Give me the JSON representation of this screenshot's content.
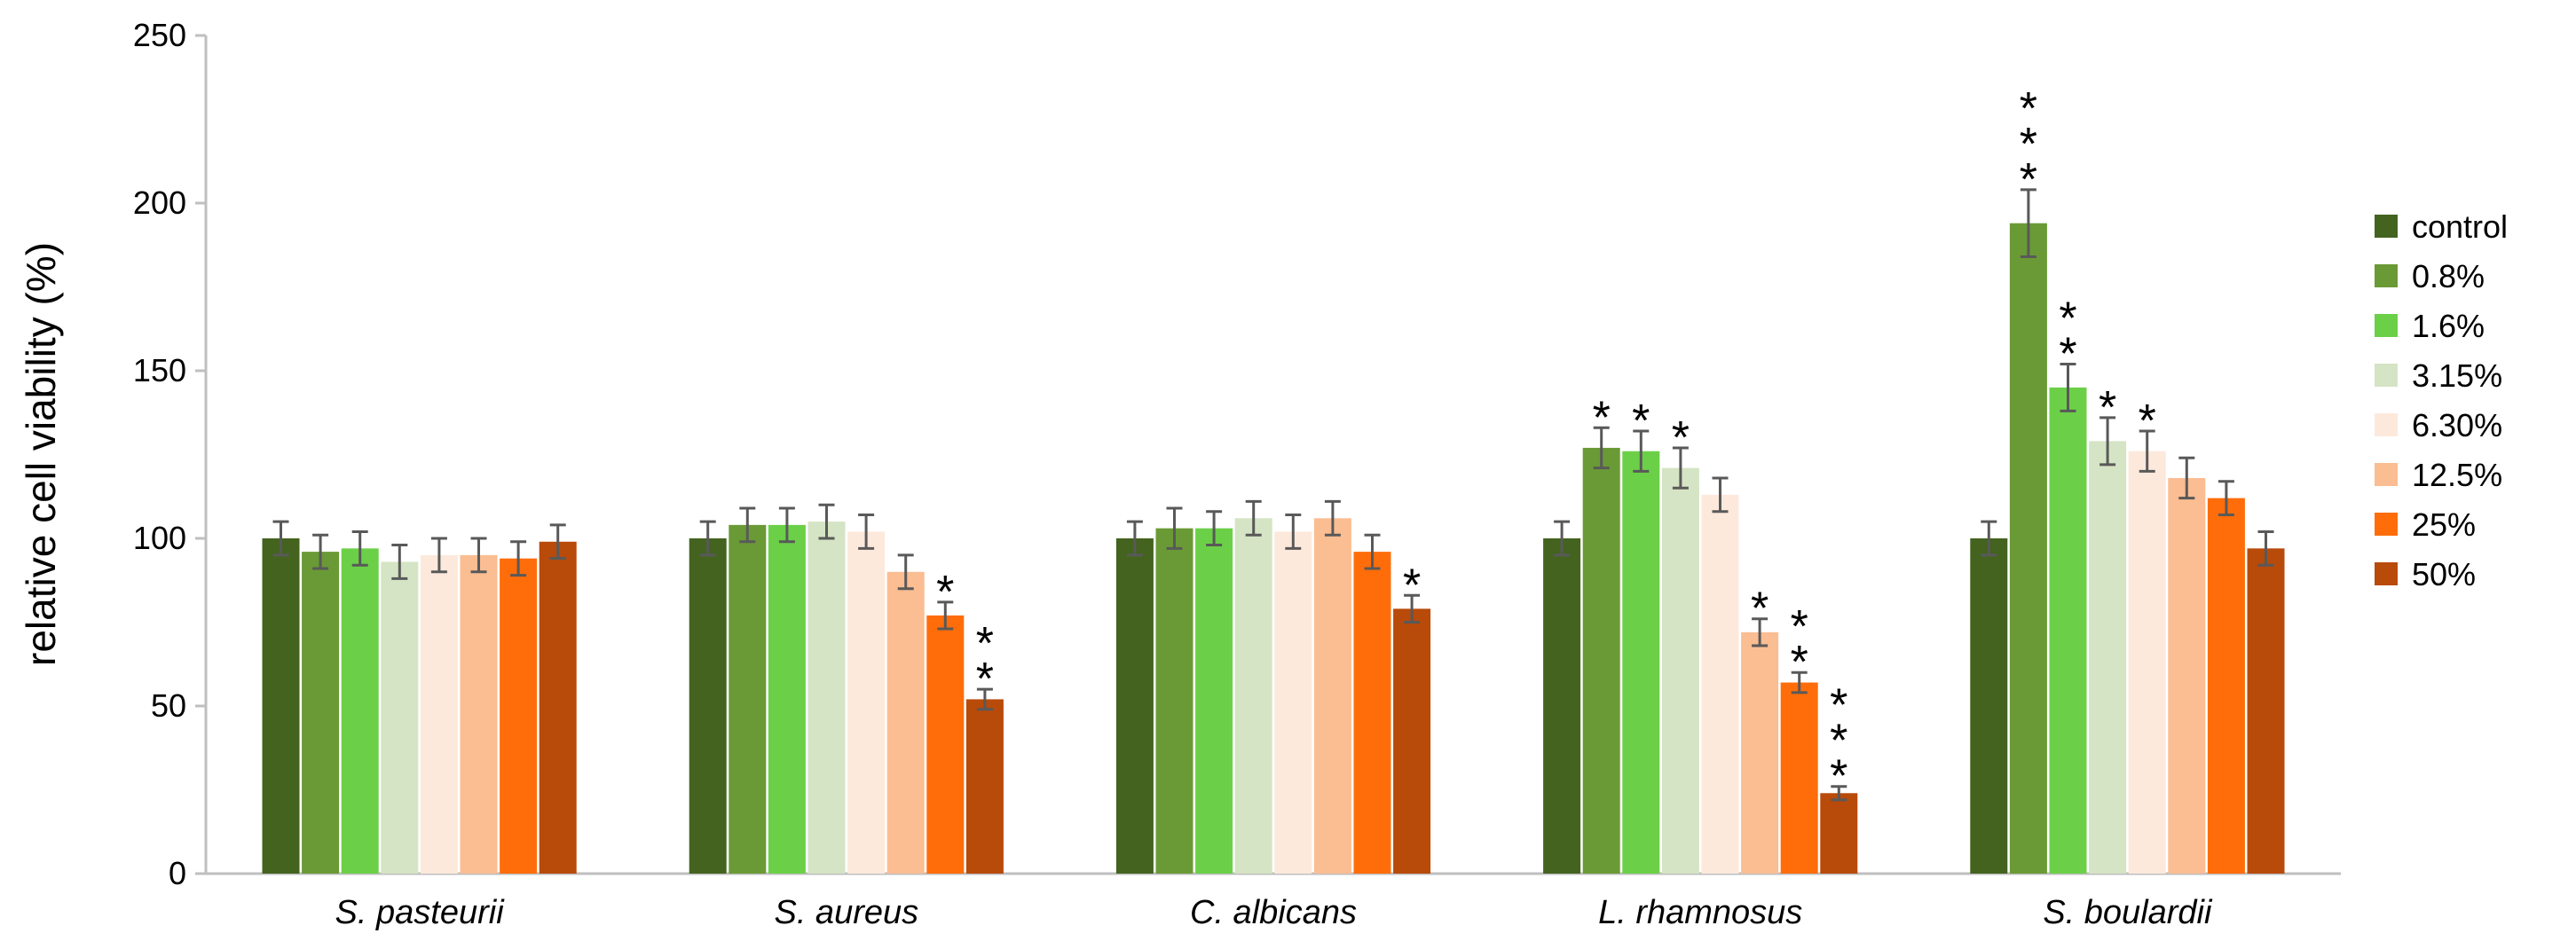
{
  "chart_data": {
    "type": "bar",
    "title": "",
    "xlabel": "",
    "ylabel": "relative cell viability (%)",
    "ylim": [
      0,
      250
    ],
    "yticks": [
      0,
      50,
      100,
      150,
      200,
      250
    ],
    "grid": false,
    "legend_position": "right",
    "categories": [
      "S. pasteurii",
      "S. aureus",
      "C. albicans",
      "L. rhamnosus",
      "S. boulardii"
    ],
    "series": [
      {
        "name": "control",
        "color": "#43631f",
        "values": [
          100,
          100,
          100,
          100,
          100
        ],
        "errors": [
          5,
          5,
          5,
          5,
          5
        ],
        "stars": [
          "",
          "",
          "",
          "",
          ""
        ]
      },
      {
        "name": "0.8%",
        "color": "#6a9a35",
        "values": [
          96,
          104,
          103,
          127,
          194
        ],
        "errors": [
          5,
          5,
          6,
          6,
          10
        ],
        "stars": [
          "",
          "",
          "",
          "*",
          "***"
        ]
      },
      {
        "name": "1.6%",
        "color": "#6bd048",
        "values": [
          97,
          104,
          103,
          126,
          145
        ],
        "errors": [
          5,
          5,
          5,
          6,
          7
        ],
        "stars": [
          "",
          "",
          "",
          "*",
          "**"
        ]
      },
      {
        "name": "3.15%",
        "color": "#d5e4c4",
        "values": [
          93,
          105,
          106,
          121,
          129
        ],
        "errors": [
          5,
          5,
          5,
          6,
          7
        ],
        "stars": [
          "",
          "",
          "",
          "*",
          "*"
        ]
      },
      {
        "name": "6.30%",
        "color": "#fde9dc",
        "values": [
          95,
          102,
          102,
          113,
          126
        ],
        "errors": [
          5,
          5,
          5,
          5,
          6
        ],
        "stars": [
          "",
          "",
          "",
          "",
          "*"
        ]
      },
      {
        "name": "12.5%",
        "color": "#fbbd92",
        "values": [
          95,
          90,
          106,
          72,
          118
        ],
        "errors": [
          5,
          5,
          5,
          4,
          6
        ],
        "stars": [
          "",
          "",
          "",
          "*",
          ""
        ]
      },
      {
        "name": "25%",
        "color": "#ff6d0a",
        "values": [
          94,
          77,
          96,
          57,
          112
        ],
        "errors": [
          5,
          4,
          5,
          3,
          5
        ],
        "stars": [
          "",
          "*",
          "",
          "**",
          ""
        ]
      },
      {
        "name": "50%",
        "color": "#b84a0a",
        "values": [
          99,
          52,
          79,
          24,
          97
        ],
        "errors": [
          5,
          3,
          4,
          2,
          5
        ],
        "stars": [
          "",
          "**",
          "*",
          "***",
          ""
        ]
      }
    ]
  }
}
